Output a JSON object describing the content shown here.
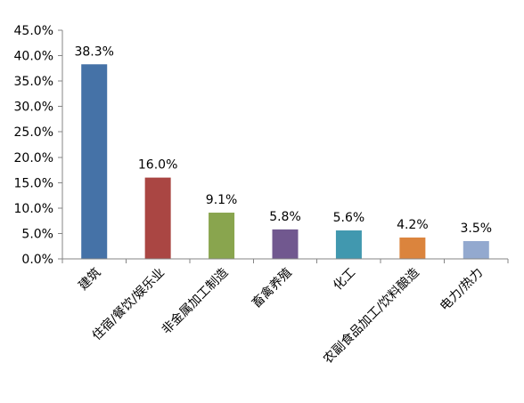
{
  "chart_data": {
    "type": "bar",
    "categories": [
      "建筑",
      "住宿/餐饮/娱乐业",
      "非金属加工制造",
      "畜禽养殖",
      "化工",
      "农副食品加工/饮料酿造",
      "电力/热力"
    ],
    "values": [
      38.3,
      16.0,
      9.1,
      5.8,
      5.6,
      4.2,
      3.5
    ],
    "data_labels": [
      "38.3%",
      "16.0%",
      "9.1%",
      "5.8%",
      "5.6%",
      "4.2%",
      "3.5%"
    ],
    "colors": [
      "#4572A7",
      "#AA4643",
      "#89A54E",
      "#71588F",
      "#4198AF",
      "#DB843D",
      "#93A9CF"
    ],
    "ylim": [
      0,
      45
    ],
    "yticks": [
      0,
      5,
      10,
      15,
      20,
      25,
      30,
      35,
      40,
      45
    ],
    "ytick_labels": [
      "0.0%",
      "5.0%",
      "10.0%",
      "15.0%",
      "20.0%",
      "25.0%",
      "30.0%",
      "35.0%",
      "40.0%",
      "45.0%"
    ],
    "grid": false,
    "legend": "none",
    "axis_color": "#868686"
  }
}
